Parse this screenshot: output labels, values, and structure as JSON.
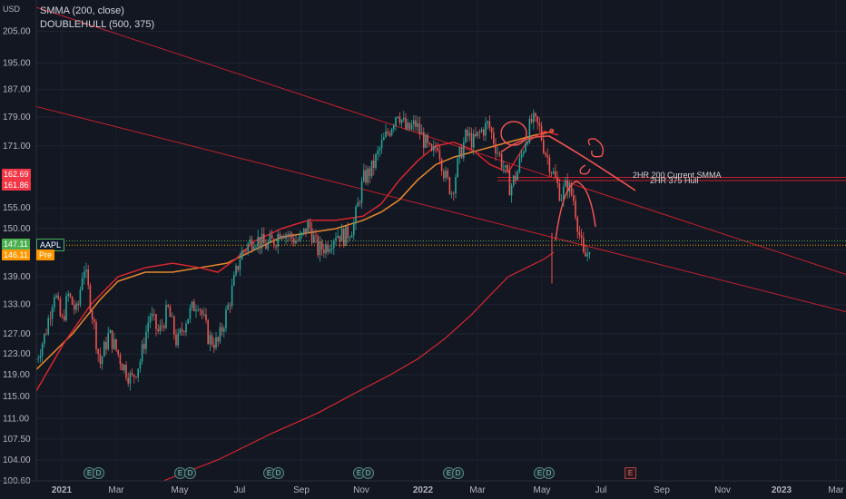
{
  "legend": {
    "currency": "USD",
    "indicator1": "SMMA (200, close)",
    "indicator2": "DOUBLEHULL (500, 375)"
  },
  "price_tags": [
    {
      "label": "162.69",
      "color": "#f23645"
    },
    {
      "label": "161.86",
      "color": "#f23645"
    },
    {
      "label": "147.11",
      "color": "#4caf50",
      "symbol": "AAPL"
    },
    {
      "label": "146.11",
      "color": "#ff9800",
      "symbol": "Pre"
    }
  ],
  "annotations": [
    "2HR 200 Current SMMA",
    "2HR 375 Hull"
  ],
  "events": [
    "E",
    "D"
  ],
  "events_future": "E",
  "chart_data": {
    "type": "line",
    "title": "",
    "xlabel": "",
    "ylabel": "",
    "y_ticks": [
      100.6,
      104.0,
      107.5,
      111.0,
      115.0,
      119.0,
      123.0,
      127.0,
      133.0,
      139.0,
      145.0,
      150.0,
      155.0,
      171.0,
      179.0,
      187.0,
      195.0,
      205.0
    ],
    "x_ticks": [
      "2021",
      "Mar",
      "May",
      "Jul",
      "Sep",
      "Nov",
      "2022",
      "Mar",
      "May",
      "Jul",
      "Sep",
      "Nov",
      "2023",
      "Mar"
    ],
    "scale": "log",
    "ylim": [
      100,
      213
    ],
    "grid": true,
    "series": [
      {
        "name": "AAPL",
        "values": [
          [
            0,
            122
          ],
          [
            10,
            127
          ],
          [
            20,
            136
          ],
          [
            28,
            129
          ],
          [
            35,
            135
          ],
          [
            45,
            131
          ],
          [
            52,
            142
          ],
          [
            60,
            133
          ],
          [
            70,
            121
          ],
          [
            80,
            127
          ],
          [
            95,
            121
          ],
          [
            105,
            118
          ],
          [
            115,
            122
          ],
          [
            125,
            131
          ],
          [
            135,
            127
          ],
          [
            145,
            132
          ],
          [
            155,
            125
          ],
          [
            165,
            130
          ],
          [
            178,
            134
          ],
          [
            190,
            126
          ],
          [
            200,
            125
          ],
          [
            212,
            133
          ],
          [
            225,
            144
          ],
          [
            240,
            148
          ],
          [
            252,
            146
          ],
          [
            262,
            147
          ],
          [
            270,
            150
          ],
          [
            280,
            148
          ],
          [
            290,
            147
          ],
          [
            300,
            151
          ],
          [
            310,
            145
          ],
          [
            320,
            146
          ],
          [
            330,
            149
          ],
          [
            340,
            148
          ],
          [
            350,
            151
          ],
          [
            360,
            162
          ],
          [
            370,
            165
          ],
          [
            380,
            171
          ],
          [
            390,
            176
          ],
          [
            398,
            181
          ],
          [
            408,
            175
          ],
          [
            418,
            177
          ],
          [
            428,
            172
          ],
          [
            436,
            168
          ],
          [
            442,
            172
          ],
          [
            450,
            163
          ],
          [
            458,
            159
          ],
          [
            466,
            168
          ],
          [
            474,
            174
          ],
          [
            482,
            172
          ],
          [
            490,
            175
          ],
          [
            498,
            177
          ],
          [
            506,
            171
          ],
          [
            514,
            166
          ],
          [
            522,
            160
          ],
          [
            530,
            164
          ],
          [
            538,
            172
          ],
          [
            546,
            178
          ],
          [
            554,
            176
          ],
          [
            560,
            170
          ],
          [
            566,
            166
          ],
          [
            572,
            162
          ],
          [
            578,
            158
          ],
          [
            585,
            161
          ],
          [
            592,
            157
          ],
          [
            598,
            149
          ],
          [
            603,
            143
          ],
          [
            607,
            144
          ],
          [
            610,
            147
          ]
        ]
      },
      {
        "name": "SMMA (200, close)",
        "values": []
      },
      {
        "name": "DOUBLEHULL (500, 375)",
        "values": []
      }
    ],
    "trendlines": [
      {
        "from": [
          "2020-12",
          213
        ],
        "to": [
          "2023-03",
          140
        ]
      },
      {
        "from": [
          "2020-12",
          182
        ],
        "to": [
          "2023-03",
          132
        ]
      }
    ],
    "horizontal_levels": [
      162.69,
      161.86
    ]
  }
}
